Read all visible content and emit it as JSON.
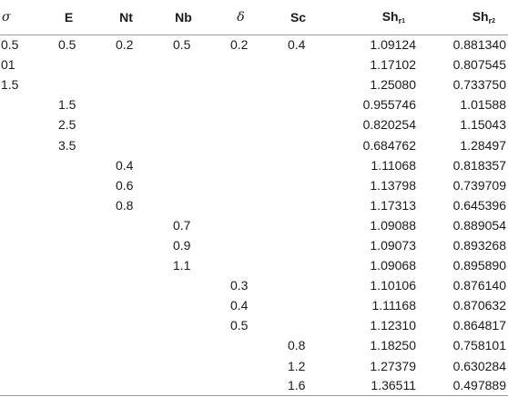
{
  "headers": {
    "sigma": "σ",
    "E": "E",
    "Nt": "Nt",
    "Nb": "Nb",
    "delta": "δ",
    "Sc": "Sc",
    "sh1_base": "Sh",
    "sh1_sub": "r",
    "sh1_subsub": "1",
    "sh2_base": "Sh",
    "sh2_sub": "r",
    "sh2_subsub": "2"
  },
  "rows": [
    [
      "0.5",
      "0.5",
      "0.2",
      "0.5",
      "0.2",
      "0.4",
      "1.09124",
      "0.881340"
    ],
    [
      "01",
      "",
      "",
      "",
      "",
      "",
      "1.17102",
      "0.807545"
    ],
    [
      "1.5",
      "",
      "",
      "",
      "",
      "",
      "1.25080",
      "0.733750"
    ],
    [
      "",
      "1.5",
      "",
      "",
      "",
      "",
      "0.955746",
      "1.01588"
    ],
    [
      "",
      "2.5",
      "",
      "",
      "",
      "",
      "0.820254",
      "1.15043"
    ],
    [
      "",
      "3.5",
      "",
      "",
      "",
      "",
      "0.684762",
      "1.28497"
    ],
    [
      "",
      "",
      "0.4",
      "",
      "",
      "",
      "1.11068",
      "0.818357"
    ],
    [
      "",
      "",
      "0.6",
      "",
      "",
      "",
      "1.13798",
      "0.739709"
    ],
    [
      "",
      "",
      "0.8",
      "",
      "",
      "",
      "1.17313",
      "0.645396"
    ],
    [
      "",
      "",
      "",
      "0.7",
      "",
      "",
      "1.09088",
      "0.889054"
    ],
    [
      "",
      "",
      "",
      "0.9",
      "",
      "",
      "1.09073",
      "0.893268"
    ],
    [
      "",
      "",
      "",
      "1.1",
      "",
      "",
      "1.09068",
      "0.895890"
    ],
    [
      "",
      "",
      "",
      "",
      "0.3",
      "",
      "1.10106",
      "0.876140"
    ],
    [
      "",
      "",
      "",
      "",
      "0.4",
      "",
      "1.11168",
      "0.870632"
    ],
    [
      "",
      "",
      "",
      "",
      "0.5",
      "",
      "1.12310",
      "0.864817"
    ],
    [
      "",
      "",
      "",
      "",
      "",
      "0.8",
      "1.18250",
      "0.758101"
    ],
    [
      "",
      "",
      "",
      "",
      "",
      "1.2",
      "1.27379",
      "0.630284"
    ],
    [
      "",
      "",
      "",
      "",
      "",
      "1.6",
      "1.36511",
      "0.497889"
    ]
  ]
}
